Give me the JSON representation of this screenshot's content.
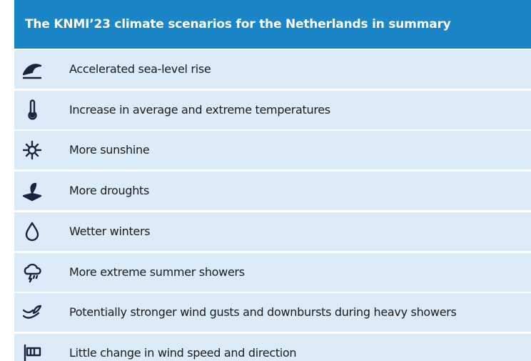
{
  "header": {
    "title": "The KNMI’23 climate scenarios for the Netherlands in summary"
  },
  "rows": [
    "Accelerated sea-level rise",
    "Increase in average and extreme temperatures",
    "More sunshine",
    "More droughts",
    "Wetter winters",
    "More extreme summer showers",
    "Potentially stronger wind gusts and downbursts during heavy showers",
    "Little change in wind speed and direction"
  ]
}
